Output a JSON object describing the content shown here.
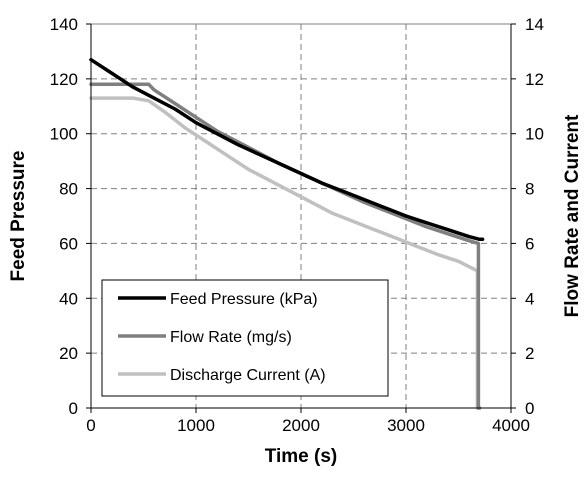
{
  "chart_data": {
    "type": "line",
    "title": "",
    "xlabel": "Time (s)",
    "ylabel_left": "Feed Pressure",
    "ylabel_right": "Flow Rate and  Current",
    "xlim": [
      0,
      4000
    ],
    "ylim_left": [
      0,
      140
    ],
    "ylim_right": [
      0,
      14
    ],
    "x_ticks": [
      0,
      1000,
      2000,
      3000,
      4000
    ],
    "y_ticks_left": [
      0,
      20,
      40,
      60,
      80,
      100,
      120,
      140
    ],
    "y_ticks_right": [
      0,
      2,
      4,
      6,
      8,
      10,
      12,
      14
    ],
    "grid": "dashed",
    "legend_position": "lower-left",
    "series": [
      {
        "name": "Feed Pressure (kPa)",
        "axis": "left",
        "color": "#000000",
        "x": [
          0,
          200,
          400,
          600,
          800,
          1000,
          1200,
          1400,
          1600,
          1800,
          2000,
          2200,
          2400,
          2600,
          2800,
          3000,
          3200,
          3400,
          3600,
          3700,
          3730
        ],
        "y": [
          127,
          122,
          117,
          113,
          109,
          104,
          100,
          96,
          92.5,
          89,
          85.5,
          82,
          79,
          76,
          73,
          70,
          67.5,
          65,
          62.5,
          61.5,
          61.5
        ]
      },
      {
        "name": "Flow Rate (mg/s)",
        "axis": "right",
        "color": "#7f7f7f",
        "x": [
          0,
          200,
          400,
          550,
          600,
          800,
          1000,
          1200,
          1400,
          1600,
          1800,
          2000,
          2200,
          2400,
          2600,
          2800,
          3000,
          3200,
          3400,
          3600,
          3690,
          3690,
          3700
        ],
        "y": [
          11.8,
          11.8,
          11.8,
          11.8,
          11.6,
          11.1,
          10.6,
          10.1,
          9.7,
          9.3,
          8.9,
          8.55,
          8.2,
          7.85,
          7.5,
          7.2,
          6.9,
          6.6,
          6.35,
          6.1,
          6.0,
          0,
          0
        ]
      },
      {
        "name": "Discharge Current (A)",
        "axis": "right",
        "color": "#c0c0c0",
        "x": [
          0,
          200,
          400,
          550,
          700,
          900,
          1100,
          1300,
          1500,
          1700,
          1900,
          2100,
          2300,
          2500,
          2700,
          2900,
          3100,
          3300,
          3500,
          3680,
          3680,
          3700
        ],
        "y": [
          11.3,
          11.3,
          11.3,
          11.2,
          10.8,
          10.2,
          9.7,
          9.2,
          8.7,
          8.3,
          7.9,
          7.5,
          7.1,
          6.8,
          6.5,
          6.2,
          5.9,
          5.6,
          5.35,
          5.0,
          0,
          0
        ]
      }
    ]
  }
}
